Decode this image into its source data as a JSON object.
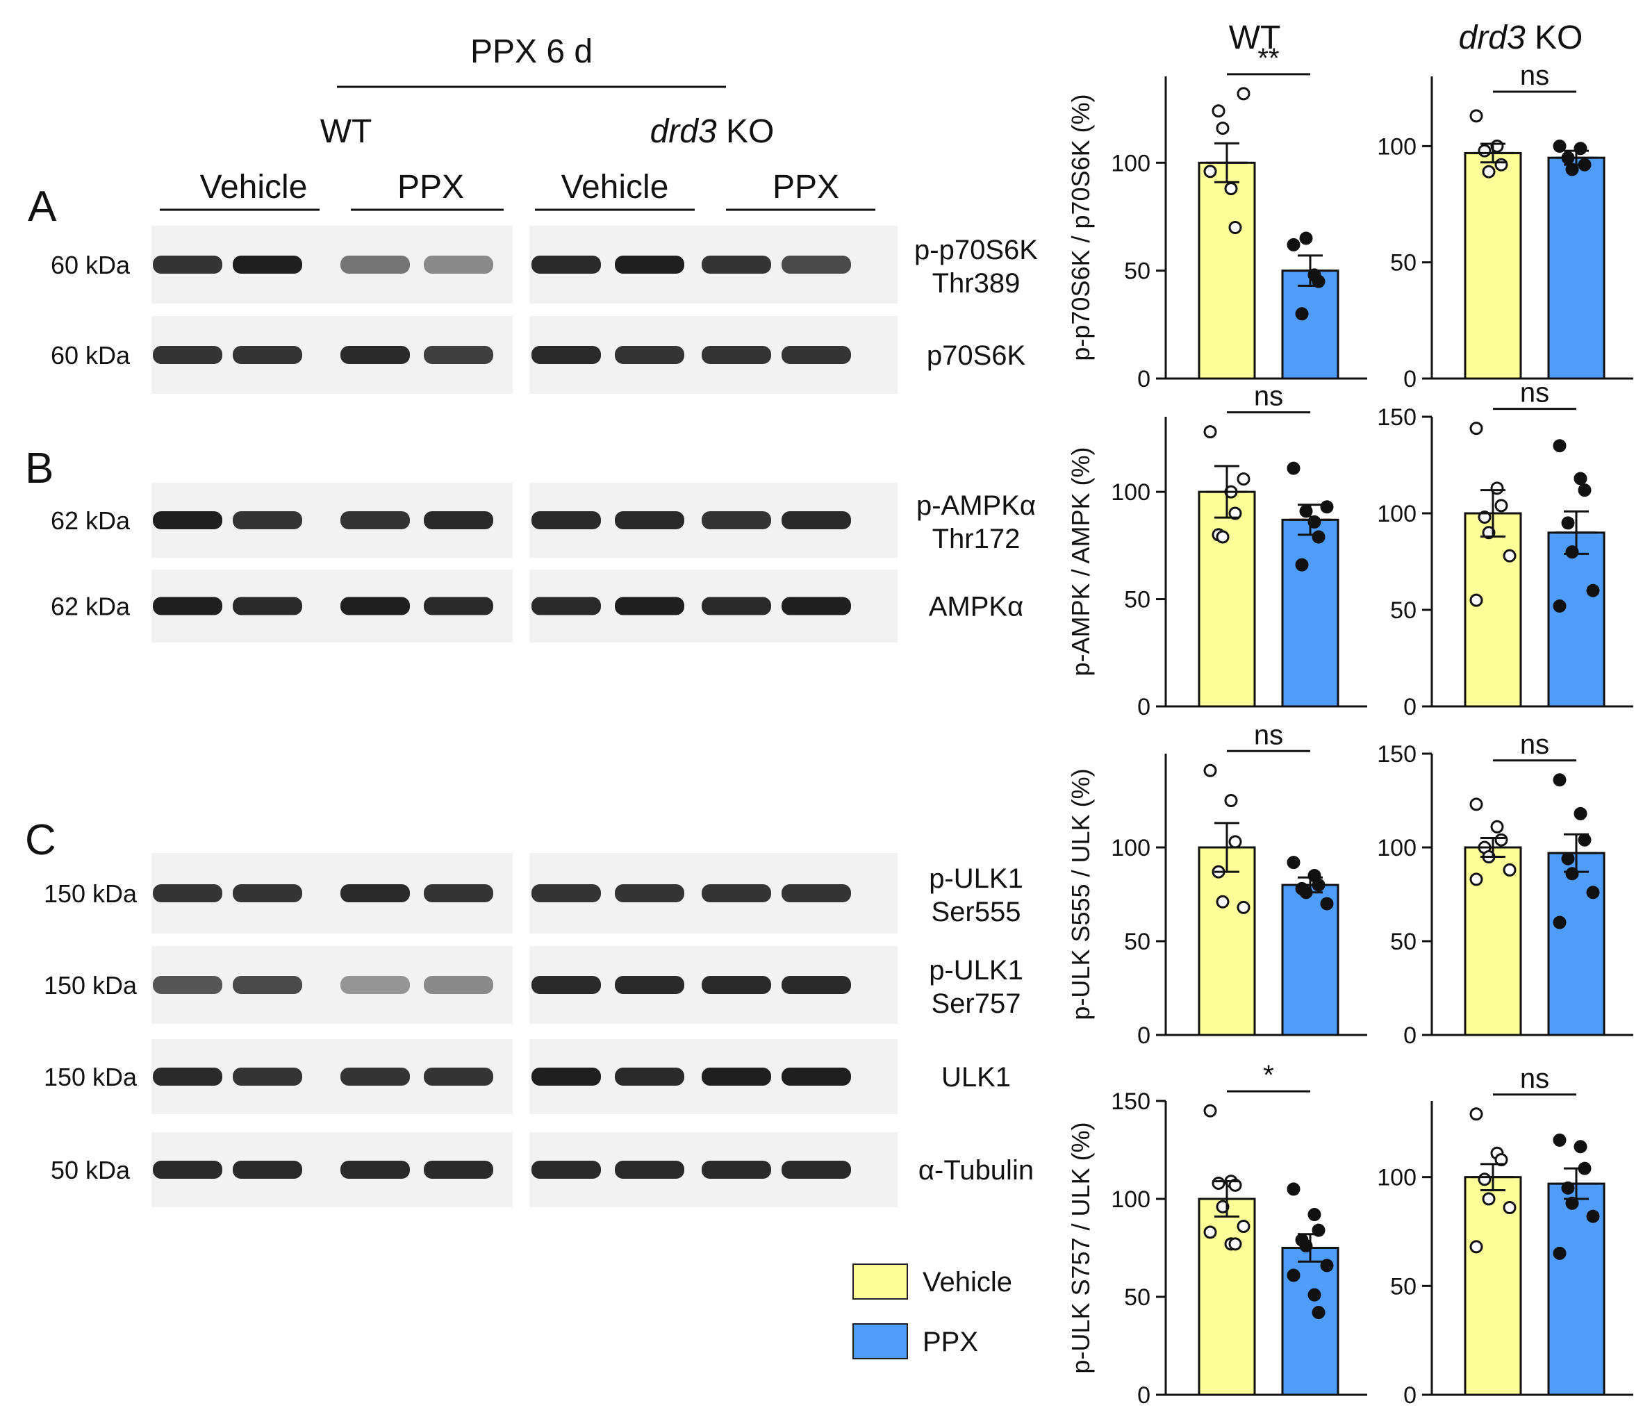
{
  "header": {
    "treatment": "PPX 6 d",
    "wt": "WT",
    "ko_gene": "drd3",
    "ko_suffix": " KO",
    "lane_groups": [
      "Vehicle",
      "PPX",
      "Vehicle",
      "PPX"
    ]
  },
  "panels": [
    "A",
    "B",
    "C"
  ],
  "blots": [
    {
      "kda": "60 kDa",
      "label": [
        "p-p70S6K",
        "Thr389"
      ],
      "wt_int": [
        0.85,
        0.95,
        0.55,
        0.45
      ],
      "ko_int": [
        0.9,
        0.95,
        0.85,
        0.75
      ]
    },
    {
      "kda": "60 kDa",
      "label": [
        "p70S6K"
      ],
      "wt_int": [
        0.85,
        0.85,
        0.9,
        0.8
      ],
      "ko_int": [
        0.9,
        0.85,
        0.85,
        0.85
      ]
    },
    {
      "kda": "62 kDa",
      "label": [
        "p-AMPKα",
        "Thr172"
      ],
      "wt_int": [
        0.95,
        0.85,
        0.85,
        0.9
      ],
      "ko_int": [
        0.9,
        0.9,
        0.85,
        0.9
      ]
    },
    {
      "kda": "62 kDa",
      "label": [
        "AMPKα"
      ],
      "wt_int": [
        0.95,
        0.9,
        0.95,
        0.9
      ],
      "ko_int": [
        0.9,
        0.95,
        0.9,
        0.95
      ]
    },
    {
      "kda": "150 kDa",
      "label": [
        "p-ULK1",
        "Ser555"
      ],
      "wt_int": [
        0.85,
        0.85,
        0.9,
        0.85
      ],
      "ko_int": [
        0.85,
        0.85,
        0.85,
        0.85
      ]
    },
    {
      "kda": "150 kDa",
      "label": [
        "p-ULK1",
        "Ser757"
      ],
      "wt_int": [
        0.7,
        0.75,
        0.4,
        0.45
      ],
      "ko_int": [
        0.9,
        0.9,
        0.9,
        0.9
      ]
    },
    {
      "kda": "150 kDa",
      "label": [
        "ULK1"
      ],
      "wt_int": [
        0.9,
        0.85,
        0.85,
        0.85
      ],
      "ko_int": [
        0.95,
        0.9,
        0.95,
        0.95
      ]
    },
    {
      "kda": "50 kDa",
      "label": [
        "α-Tubulin"
      ],
      "wt_int": [
        0.9,
        0.9,
        0.9,
        0.9
      ],
      "ko_int": [
        0.9,
        0.9,
        0.9,
        0.9
      ]
    }
  ],
  "legend": [
    {
      "name": "Vehicle",
      "color": "#ffff99"
    },
    {
      "name": "PPX",
      "color": "#4f9cf9"
    }
  ],
  "chart_data": [
    {
      "type": "bar",
      "group": "WT",
      "ylabel": "p-p70S6K / p70S6K (%)",
      "ylim": [
        0,
        140
      ],
      "yticks": [
        0,
        50,
        100
      ],
      "categories": [
        "Vehicle",
        "PPX"
      ],
      "values": [
        100,
        50
      ],
      "sem": [
        9,
        7
      ],
      "significance": "**",
      "points": [
        [
          96,
          88,
          70,
          124,
          116,
          132
        ],
        [
          62,
          48,
          45,
          30,
          65
        ]
      ]
    },
    {
      "type": "bar",
      "group": "drd3 KO",
      "ylabel": "",
      "ylim": [
        0,
        130
      ],
      "yticks": [
        0,
        50,
        100
      ],
      "categories": [
        "Vehicle",
        "PPX"
      ],
      "values": [
        97,
        95
      ],
      "sem": [
        4,
        3
      ],
      "significance": "ns",
      "points": [
        [
          113,
          100,
          92,
          98,
          89
        ],
        [
          100,
          99,
          92,
          95,
          90
        ]
      ]
    },
    {
      "type": "bar",
      "group": "WT",
      "ylabel": "p-AMPK / AMPK (%)",
      "ylim": [
        0,
        135
      ],
      "yticks": [
        0,
        50,
        100
      ],
      "categories": [
        "Vehicle",
        "PPX"
      ],
      "values": [
        100,
        87
      ],
      "sem": [
        12,
        7
      ],
      "significance": "ns",
      "points": [
        [
          128,
          100,
          90,
          80,
          79,
          106
        ],
        [
          111,
          86,
          79,
          66,
          91,
          93
        ]
      ]
    },
    {
      "type": "bar",
      "group": "drd3 KO",
      "ylabel": "",
      "ylim": [
        0,
        150
      ],
      "yticks": [
        0,
        50,
        100,
        150
      ],
      "categories": [
        "Vehicle",
        "PPX"
      ],
      "values": [
        100,
        90
      ],
      "sem": [
        12,
        11
      ],
      "significance": "ns",
      "points": [
        [
          144,
          113,
          104,
          98,
          90,
          78,
          55
        ],
        [
          135,
          118,
          112,
          95,
          80,
          60,
          52
        ]
      ]
    },
    {
      "type": "bar",
      "group": "WT",
      "ylabel": "p-ULK S555 / ULK (%)",
      "ylim": [
        0,
        150
      ],
      "yticks": [
        0,
        50,
        100
      ],
      "categories": [
        "Vehicle",
        "PPX"
      ],
      "values": [
        100,
        80
      ],
      "sem": [
        13,
        4
      ],
      "significance": "ns",
      "points": [
        [
          141,
          125,
          103,
          87,
          71,
          68
        ],
        [
          92,
          85,
          80,
          78,
          76,
          70
        ]
      ]
    },
    {
      "type": "bar",
      "group": "drd3 KO",
      "ylabel": "",
      "ylim": [
        0,
        150
      ],
      "yticks": [
        0,
        50,
        100,
        150
      ],
      "categories": [
        "Vehicle",
        "PPX"
      ],
      "values": [
        100,
        97
      ],
      "sem": [
        5,
        10
      ],
      "significance": "ns",
      "points": [
        [
          123,
          111,
          104,
          100,
          95,
          88,
          83
        ],
        [
          136,
          118,
          104,
          94,
          86,
          76,
          60
        ]
      ]
    },
    {
      "type": "bar",
      "group": "WT",
      "ylabel": "p-ULK S757 / ULK (%)",
      "ylim": [
        0,
        150
      ],
      "yticks": [
        0,
        50,
        100,
        150
      ],
      "categories": [
        "Vehicle",
        "PPX"
      ],
      "values": [
        100,
        75
      ],
      "sem": [
        9,
        7
      ],
      "significance": "*",
      "points": [
        [
          145,
          109,
          107,
          108,
          96,
          86,
          83,
          77,
          77
        ],
        [
          105,
          92,
          84,
          79,
          76,
          66,
          61,
          51,
          42
        ]
      ]
    },
    {
      "type": "bar",
      "group": "drd3 KO",
      "ylabel": "",
      "ylim": [
        0,
        135
      ],
      "yticks": [
        0,
        50,
        100
      ],
      "categories": [
        "Vehicle",
        "PPX"
      ],
      "values": [
        100,
        97
      ],
      "sem": [
        6,
        7
      ],
      "significance": "ns",
      "points": [
        [
          129,
          111,
          108,
          99,
          90,
          86,
          68
        ],
        [
          117,
          114,
          104,
          95,
          88,
          82,
          65
        ]
      ]
    }
  ]
}
